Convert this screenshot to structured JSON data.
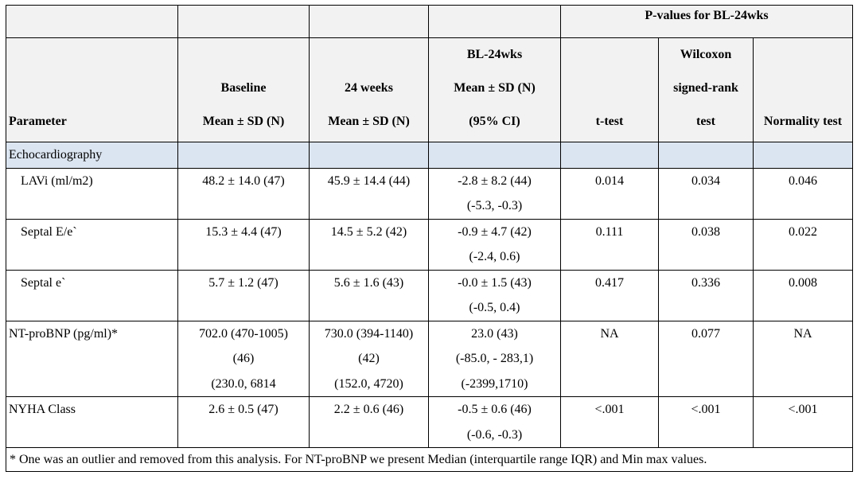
{
  "header": {
    "pvalues_group": "P-values for BL-24wks",
    "col_parameter": "Parameter",
    "col_baseline": [
      "Baseline",
      "Mean ± SD (N)"
    ],
    "col_24weeks": [
      "24 weeks",
      "Mean ± SD (N)"
    ],
    "col_diff": [
      "BL-24wks",
      "Mean ± SD (N)",
      "(95% CI)"
    ],
    "col_ttest": "t-test",
    "col_wilcoxon": [
      "Wilcoxon",
      "signed-rank",
      "test"
    ],
    "col_normality": "Normality test"
  },
  "group_label": "Echocardiography",
  "rows": [
    {
      "param": "LAVi (ml/m2)",
      "baseline": [
        "48.2 ± 14.0 (47)"
      ],
      "w24": [
        "45.9 ± 14.4 (44)"
      ],
      "diff": [
        "-2.8 ± 8.2 (44)",
        "(-5.3, -0.3)"
      ],
      "ttest": "0.014",
      "wilcoxon": "0.034",
      "normality": "0.046"
    },
    {
      "param": "Septal E/e`",
      "baseline": [
        "15.3 ± 4.4 (47)"
      ],
      "w24": [
        "14.5 ± 5.2 (42)"
      ],
      "diff": [
        "-0.9 ± 4.7 (42)",
        "(-2.4, 0.6)"
      ],
      "ttest": "0.111",
      "wilcoxon": "0.038",
      "normality": "0.022"
    },
    {
      "param": "Septal e`",
      "baseline": [
        "5.7 ± 1.2 (47)"
      ],
      "w24": [
        "5.6 ± 1.6 (43)"
      ],
      "diff": [
        "-0.0 ± 1.5 (43)",
        "(-0.5, 0.4)"
      ],
      "ttest": "0.417",
      "wilcoxon": "0.336",
      "normality": "0.008"
    },
    {
      "param": "NT-proBNP (pg/ml)*",
      "baseline": [
        "702.0 (470-1005)",
        "(46)",
        "(230.0, 6814"
      ],
      "w24": [
        "730.0 (394-1140)",
        "(42)",
        "(152.0, 4720)"
      ],
      "diff": [
        "23.0 (43)",
        "(-85.0, - 283,1)",
        "(-2399,1710)"
      ],
      "ttest": "NA",
      "wilcoxon": "0.077",
      "normality": "NA"
    },
    {
      "param": "NYHA Class",
      "baseline": [
        "2.6 ± 0.5 (47)"
      ],
      "w24": [
        "2.2 ± 0.6 (46)"
      ],
      "diff": [
        "-0.5 ± 0.6 (46)",
        "(-0.6, -0.3)"
      ],
      "ttest": "<.001",
      "wilcoxon": "<.001",
      "normality": "<.001"
    }
  ],
  "footnote": "* One was an outlier and removed from this analysis. For NT-proBNP we present Median (interquartile range IQR) and Min max values.",
  "colors": {
    "header_bg": "#f2f2f2",
    "group_bg": "#dbe5f1",
    "border": "#000000"
  }
}
